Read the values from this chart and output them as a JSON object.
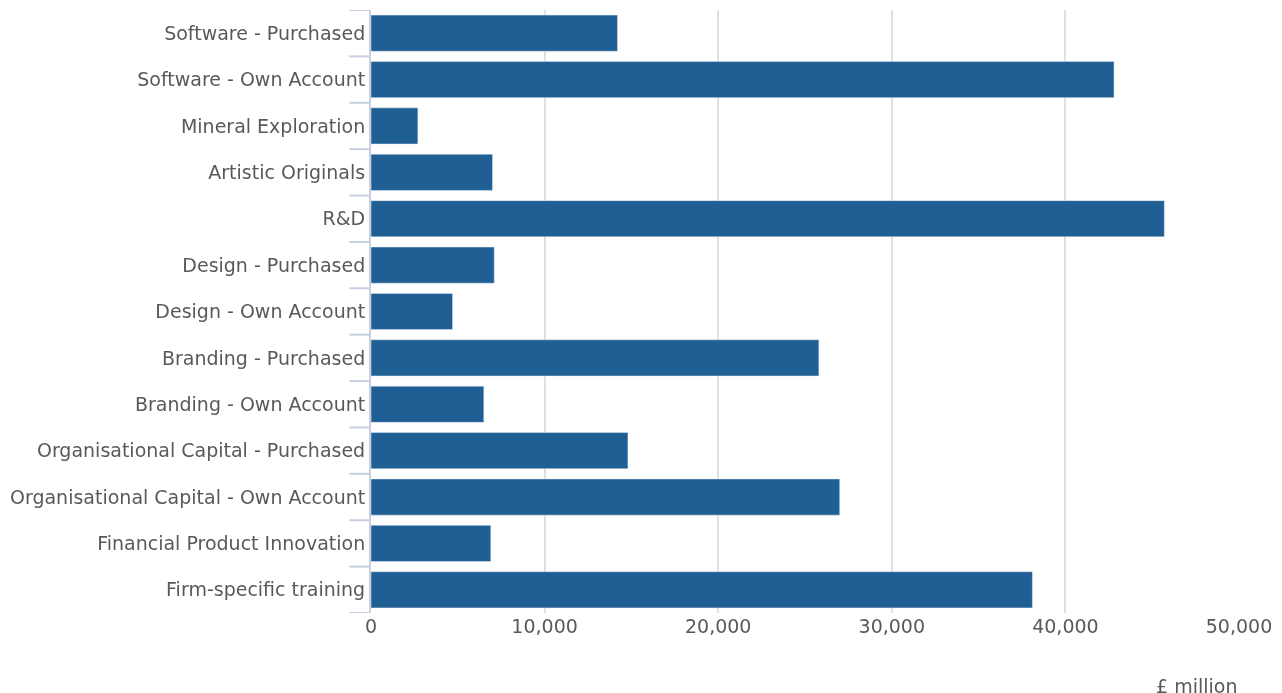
{
  "chart_data": {
    "type": "bar",
    "orientation": "horizontal",
    "categories": [
      "Software - Purchased",
      "Software - Own Account",
      "Mineral Exploration",
      "Artistic Originals",
      "R&D",
      "Design - Purchased",
      "Design - Own Account",
      "Branding - Purchased",
      "Branding - Own Account",
      "Organisational Capital - Purchased",
      "Organisational Capital - Own Account",
      "Financial Product Innovation",
      "Firm-specific training"
    ],
    "values": [
      14200,
      42800,
      2700,
      7000,
      45700,
      7100,
      4700,
      25800,
      6500,
      14800,
      27000,
      6900,
      38100
    ],
    "color": "#205f94",
    "xlim": [
      0,
      50000
    ],
    "xticks": [
      {
        "value": 0,
        "label": "0"
      },
      {
        "value": 10000,
        "label": "10,000"
      },
      {
        "value": 20000,
        "label": "20,000"
      },
      {
        "value": 30000,
        "label": "30,000"
      },
      {
        "value": 40000,
        "label": "40,000"
      },
      {
        "value": 50000,
        "label": "50,000"
      }
    ],
    "xlabel": "£ million",
    "grid": "x",
    "legend": false
  }
}
